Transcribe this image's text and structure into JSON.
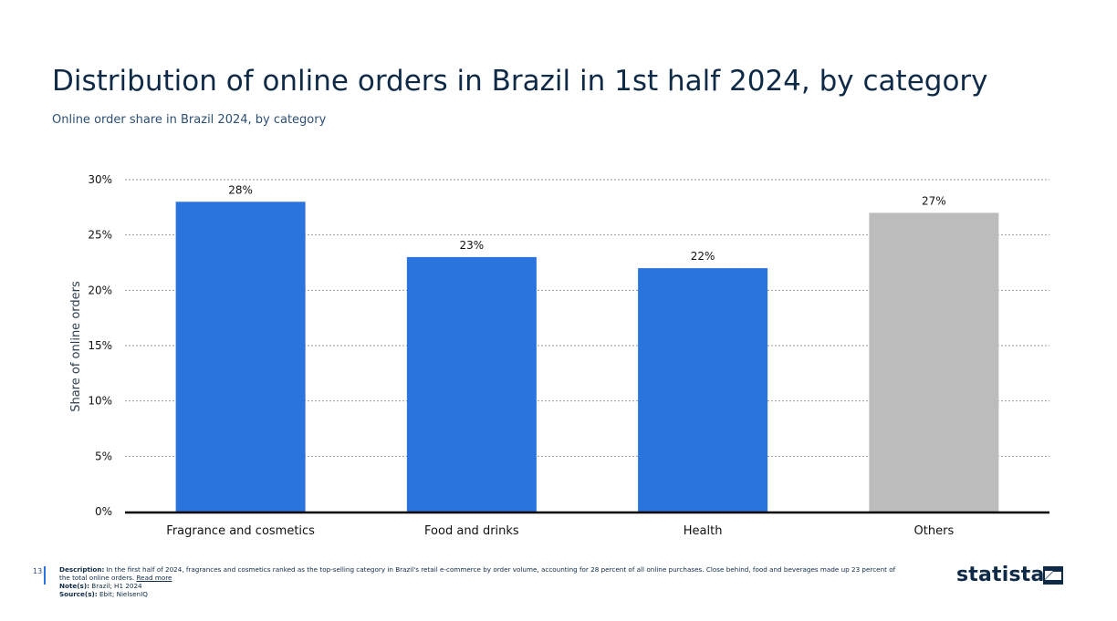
{
  "title": "Distribution of online orders in Brazil in 1st half 2024, by category",
  "subtitle": "Online order share in Brazil 2024, by category",
  "chart_data": {
    "type": "bar",
    "title": "Distribution of online orders in Brazil in 1st half 2024, by category",
    "subtitle": "Online order share in Brazil 2024, by category",
    "xlabel": "",
    "ylabel": "Share of online orders",
    "ylim": [
      0,
      30
    ],
    "yticks": [
      0,
      5,
      10,
      15,
      20,
      25,
      30
    ],
    "ytick_labels": [
      "0%",
      "5%",
      "10%",
      "15%",
      "20%",
      "25%",
      "30%"
    ],
    "categories": [
      "Fragrance and cosmetics",
      "Food and drinks",
      "Health",
      "Others"
    ],
    "values": [
      28,
      23,
      22,
      27
    ],
    "value_labels": [
      "28%",
      "23%",
      "22%",
      "27%"
    ],
    "bar_colors": [
      "#2a74dd",
      "#2a74dd",
      "#2a74dd",
      "#bcbcbc"
    ],
    "grid": true,
    "legend": "none"
  },
  "footer": {
    "page_number": "13",
    "description_label": "Description:",
    "description_text": "In the first half of 2024, fragrances and cosmetics ranked as the top-selling category in Brazil's retail e-commerce by order volume, accounting for 28 percent of all online purchases. Close behind, food and beverages made up 23 percent of the total online orders.",
    "read_more": "Read more",
    "notes_label": "Note(s):",
    "notes_text": "Brazil; H1 2024",
    "sources_label": "Source(s):",
    "sources_text": "Ebit; NielsenIQ"
  },
  "logo": {
    "text": "statista"
  },
  "colors": {
    "title": "#0f2a47",
    "subtitle": "#2c4f75",
    "bar_primary": "#2a74dd",
    "bar_other": "#bcbcbc",
    "axis": "#000000",
    "grid": "#999999"
  }
}
